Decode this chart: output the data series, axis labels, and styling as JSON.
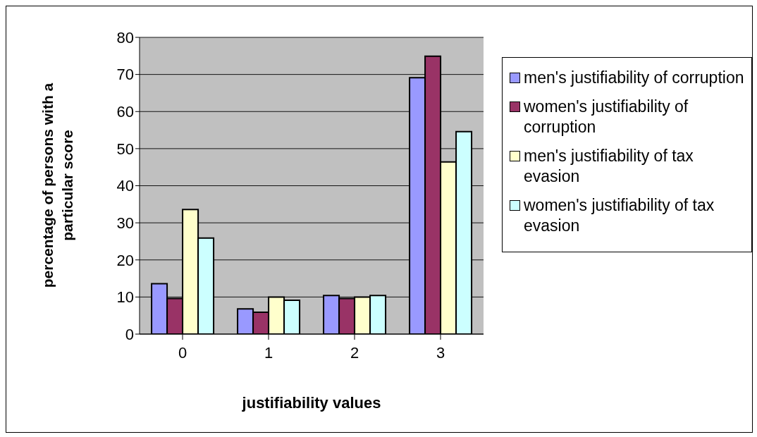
{
  "chart_data": {
    "type": "bar",
    "xlabel": "justifiability values",
    "ylabel": "percentage of persons with a particular score",
    "categories": [
      "0",
      "1",
      "2",
      "3"
    ],
    "series": [
      {
        "name": "men's justifiability of corruption",
        "color": "#9999ff",
        "values": [
          13.6,
          6.8,
          10.4,
          69.1
        ]
      },
      {
        "name": "women's justifiability of corruption",
        "color": "#993366",
        "values": [
          9.6,
          5.9,
          9.6,
          74.9
        ]
      },
      {
        "name": "men's justifiability of tax evasion",
        "color": "#ffffcc",
        "values": [
          33.6,
          10.0,
          10.0,
          46.4
        ]
      },
      {
        "name": "women's justifiability of tax evasion",
        "color": "#ccffff",
        "values": [
          25.9,
          9.1,
          10.4,
          54.6
        ]
      }
    ],
    "ylim": [
      0,
      80
    ],
    "yticks": [
      0,
      10,
      20,
      30,
      40,
      50,
      60,
      70,
      80
    ],
    "grid": "y",
    "legend": "right"
  }
}
